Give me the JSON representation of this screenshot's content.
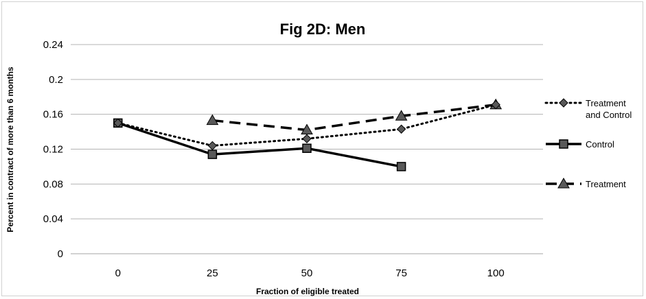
{
  "chart_data": {
    "type": "line",
    "title": "Fig 2D: Men",
    "xlabel": "Fraction of eligible treated",
    "ylabel": "Percent in contract of more than 6 months",
    "categories": [
      "0",
      "25",
      "50",
      "75",
      "100"
    ],
    "x_tick_labels": [
      "0",
      "25",
      "50",
      "75",
      "100"
    ],
    "y_tick_labels": [
      "0",
      "0.04",
      "0.08",
      "0.12",
      "0.16",
      "0.2",
      "0.24"
    ],
    "ylim": [
      0,
      0.24
    ],
    "y_ticks": [
      0,
      0.04,
      0.08,
      0.12,
      0.16,
      0.2,
      0.24
    ],
    "grid": "horizontal",
    "legend_position": "right",
    "series": [
      {
        "key": "treatment_and_control",
        "name_lines": [
          "Treatment",
          "and Control"
        ],
        "style": "dotted",
        "marker": "diamond",
        "color": "#000000",
        "values": [
          0.15,
          0.124,
          0.132,
          0.143,
          0.171
        ]
      },
      {
        "key": "control",
        "name_lines": [
          "Control"
        ],
        "style": "solid",
        "marker": "square",
        "color": "#000000",
        "values": [
          0.15,
          0.114,
          0.121,
          0.1,
          null
        ]
      },
      {
        "key": "treatment",
        "name_lines": [
          "Treatment"
        ],
        "style": "dashed",
        "marker": "triangle",
        "color": "#000000",
        "values": [
          null,
          0.153,
          0.142,
          0.158,
          0.171
        ]
      }
    ]
  }
}
